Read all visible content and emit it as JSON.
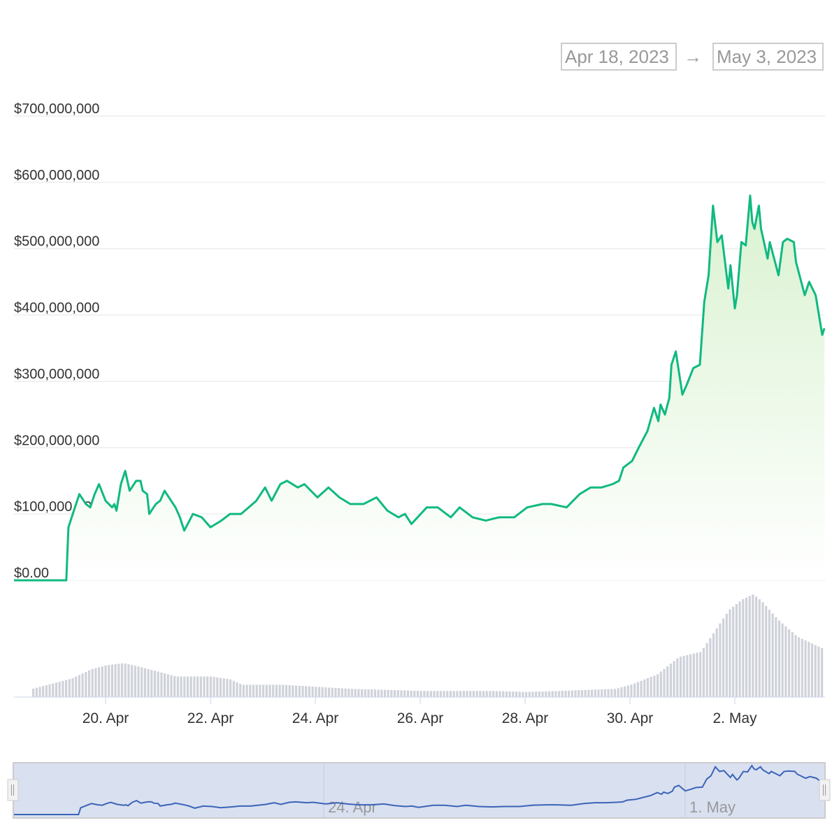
{
  "range_selector": {
    "from": "Apr 18, 2023",
    "arrow": "→",
    "to": "May 3, 2023"
  },
  "colors": {
    "line": "#10b981",
    "area_top": "#d9f2d0",
    "volume": "#cfd2da",
    "navigator_fill": "#d9e0f0",
    "navigator_line": "#3b64b8",
    "grid": "#e6e6e6"
  },
  "chart_data": {
    "type": "area",
    "ylim": [
      0,
      700000000
    ],
    "y_ticks": [
      {
        "value": 0,
        "label": "$0.00"
      },
      {
        "value": 100000000,
        "label": "$100,000,000"
      },
      {
        "value": 200000000,
        "label": "$200,000,000"
      },
      {
        "value": 300000000,
        "label": "$300,000,000"
      },
      {
        "value": 400000000,
        "label": "$400,000,000"
      },
      {
        "value": 500000000,
        "label": "$500,000,000"
      },
      {
        "value": 600000000,
        "label": "$600,000,000"
      },
      {
        "value": 700000000,
        "label": "$700,000,000"
      }
    ],
    "x_ticks": [
      {
        "date": "2023-04-20T00:00",
        "label": "20. Apr"
      },
      {
        "date": "2023-04-22T00:00",
        "label": "22. Apr"
      },
      {
        "date": "2023-04-24T00:00",
        "label": "24. Apr"
      },
      {
        "date": "2023-04-26T00:00",
        "label": "26. Apr"
      },
      {
        "date": "2023-04-28T00:00",
        "label": "28. Apr"
      },
      {
        "date": "2023-04-30T00:00",
        "label": "30. Apr"
      },
      {
        "date": "2023-05-02T00:00",
        "label": "2. May"
      }
    ],
    "xlim": [
      "2023-04-18T00:00",
      "2023-05-03T17:00"
    ],
    "grid": true,
    "series_unit": "USD millions",
    "series": [
      [
        "2023-04-18T00:00",
        0
      ],
      [
        "2023-04-19T06:00",
        0
      ],
      [
        "2023-04-19T07:00",
        80
      ],
      [
        "2023-04-19T09:00",
        100
      ],
      [
        "2023-04-19T12:00",
        130
      ],
      [
        "2023-04-19T15:00",
        115
      ],
      [
        "2023-04-19T17:00",
        110
      ],
      [
        "2023-04-19T19:00",
        130
      ],
      [
        "2023-04-19T21:00",
        145
      ],
      [
        "2023-04-20T00:00",
        120
      ],
      [
        "2023-04-20T03:00",
        110
      ],
      [
        "2023-04-20T04:00",
        115
      ],
      [
        "2023-04-20T05:00",
        105
      ],
      [
        "2023-04-20T07:00",
        145
      ],
      [
        "2023-04-20T09:00",
        165
      ],
      [
        "2023-04-20T11:00",
        135
      ],
      [
        "2023-04-20T14:00",
        150
      ],
      [
        "2023-04-20T16:00",
        150
      ],
      [
        "2023-04-20T17:00",
        135
      ],
      [
        "2023-04-20T19:00",
        130
      ],
      [
        "2023-04-20T20:00",
        100
      ],
      [
        "2023-04-20T23:00",
        115
      ],
      [
        "2023-04-21T01:00",
        120
      ],
      [
        "2023-04-21T03:00",
        135
      ],
      [
        "2023-04-21T08:00",
        110
      ],
      [
        "2023-04-21T10:00",
        95
      ],
      [
        "2023-04-21T12:00",
        75
      ],
      [
        "2023-04-21T16:00",
        100
      ],
      [
        "2023-04-21T20:00",
        95
      ],
      [
        "2023-04-22T00:00",
        80
      ],
      [
        "2023-04-22T05:00",
        90
      ],
      [
        "2023-04-22T09:00",
        100
      ],
      [
        "2023-04-22T14:00",
        100
      ],
      [
        "2023-04-22T21:00",
        120
      ],
      [
        "2023-04-23T01:00",
        140
      ],
      [
        "2023-04-23T04:00",
        120
      ],
      [
        "2023-04-23T08:00",
        145
      ],
      [
        "2023-04-23T11:00",
        150
      ],
      [
        "2023-04-23T16:00",
        140
      ],
      [
        "2023-04-23T19:00",
        145
      ],
      [
        "2023-04-24T01:00",
        125
      ],
      [
        "2023-04-24T06:00",
        140
      ],
      [
        "2023-04-24T11:00",
        125
      ],
      [
        "2023-04-24T16:00",
        115
      ],
      [
        "2023-04-24T22:00",
        115
      ],
      [
        "2023-04-25T04:00",
        125
      ],
      [
        "2023-04-25T09:00",
        105
      ],
      [
        "2023-04-25T14:00",
        95
      ],
      [
        "2023-04-25T17:00",
        100
      ],
      [
        "2023-04-25T20:00",
        85
      ],
      [
        "2023-04-26T03:00",
        110
      ],
      [
        "2023-04-26T08:00",
        110
      ],
      [
        "2023-04-26T14:00",
        95
      ],
      [
        "2023-04-26T18:00",
        110
      ],
      [
        "2023-04-27T00:00",
        95
      ],
      [
        "2023-04-27T06:00",
        90
      ],
      [
        "2023-04-27T12:00",
        95
      ],
      [
        "2023-04-27T19:00",
        95
      ],
      [
        "2023-04-28T01:00",
        110
      ],
      [
        "2023-04-28T08:00",
        115
      ],
      [
        "2023-04-28T12:00",
        115
      ],
      [
        "2023-04-28T19:00",
        110
      ],
      [
        "2023-04-29T01:00",
        130
      ],
      [
        "2023-04-29T06:00",
        140
      ],
      [
        "2023-04-29T11:00",
        140
      ],
      [
        "2023-04-29T16:00",
        145
      ],
      [
        "2023-04-29T19:00",
        150
      ],
      [
        "2023-04-29T21:00",
        170
      ],
      [
        "2023-04-30T01:00",
        180
      ],
      [
        "2023-04-30T04:00",
        200
      ],
      [
        "2023-04-30T08:00",
        225
      ],
      [
        "2023-04-30T11:00",
        260
      ],
      [
        "2023-04-30T13:00",
        240
      ],
      [
        "2023-04-30T14:00",
        265
      ],
      [
        "2023-04-30T16:00",
        250
      ],
      [
        "2023-04-30T18:00",
        275
      ],
      [
        "2023-04-30T19:00",
        325
      ],
      [
        "2023-04-30T21:00",
        345
      ],
      [
        "2023-05-01T00:00",
        280
      ],
      [
        "2023-05-01T02:00",
        295
      ],
      [
        "2023-05-01T05:00",
        320
      ],
      [
        "2023-05-01T08:00",
        325
      ],
      [
        "2023-05-01T10:00",
        420
      ],
      [
        "2023-05-01T12:00",
        460
      ],
      [
        "2023-05-01T14:00",
        565
      ],
      [
        "2023-05-01T16:00",
        510
      ],
      [
        "2023-05-01T18:00",
        520
      ],
      [
        "2023-05-01T21:00",
        440
      ],
      [
        "2023-05-01T22:00",
        475
      ],
      [
        "2023-05-02T00:00",
        410
      ],
      [
        "2023-05-02T01:00",
        430
      ],
      [
        "2023-05-02T03:00",
        510
      ],
      [
        "2023-05-02T05:00",
        505
      ],
      [
        "2023-05-02T07:00",
        580
      ],
      [
        "2023-05-02T08:00",
        540
      ],
      [
        "2023-05-02T09:00",
        530
      ],
      [
        "2023-05-02T11:00",
        565
      ],
      [
        "2023-05-02T12:00",
        530
      ],
      [
        "2023-05-02T15:00",
        485
      ],
      [
        "2023-05-02T16:00",
        510
      ],
      [
        "2023-05-02T20:00",
        460
      ],
      [
        "2023-05-02T22:00",
        510
      ],
      [
        "2023-05-03T00:00",
        515
      ],
      [
        "2023-05-03T03:00",
        510
      ],
      [
        "2023-05-03T04:00",
        480
      ],
      [
        "2023-05-03T08:00",
        430
      ],
      [
        "2023-05-03T10:00",
        450
      ],
      [
        "2023-05-03T13:00",
        430
      ],
      [
        "2023-05-03T16:00",
        370
      ],
      [
        "2023-05-03T17:00",
        380
      ]
    ],
    "volume_relative": [
      [
        "2023-04-18T14:00",
        8
      ],
      [
        "2023-04-19T08:00",
        18
      ],
      [
        "2023-04-19T17:00",
        27
      ],
      [
        "2023-04-20T00:00",
        31
      ],
      [
        "2023-04-20T08:00",
        33
      ],
      [
        "2023-04-20T16:00",
        29
      ],
      [
        "2023-04-21T01:00",
        24
      ],
      [
        "2023-04-21T08:00",
        20
      ],
      [
        "2023-04-22T00:00",
        20
      ],
      [
        "2023-04-22T09:00",
        17
      ],
      [
        "2023-04-22T14:00",
        12
      ],
      [
        "2023-04-23T08:00",
        12
      ],
      [
        "2023-04-24T00:00",
        10
      ],
      [
        "2023-04-24T16:00",
        8
      ],
      [
        "2023-04-26T00:00",
        6
      ],
      [
        "2023-04-27T08:00",
        6
      ],
      [
        "2023-04-28T00:00",
        5
      ],
      [
        "2023-04-28T16:00",
        6
      ],
      [
        "2023-04-29T17:00",
        8
      ],
      [
        "2023-04-30T00:00",
        12
      ],
      [
        "2023-04-30T12:00",
        22
      ],
      [
        "2023-04-30T22:00",
        39
      ],
      [
        "2023-05-01T08:00",
        44
      ],
      [
        "2023-05-01T14:00",
        63
      ],
      [
        "2023-05-01T21:00",
        85
      ],
      [
        "2023-05-02T03:00",
        95
      ],
      [
        "2023-05-02T08:00",
        100
      ],
      [
        "2023-05-02T12:00",
        93
      ],
      [
        "2023-05-02T19:00",
        76
      ],
      [
        "2023-05-03T04:00",
        59
      ],
      [
        "2023-05-03T16:00",
        47
      ]
    ],
    "navigator": {
      "ticks": [
        {
          "date": "2023-04-24T00:00",
          "label": "24. Apr"
        },
        {
          "date": "2023-05-01T00:00",
          "label": "1. May"
        }
      ]
    }
  }
}
